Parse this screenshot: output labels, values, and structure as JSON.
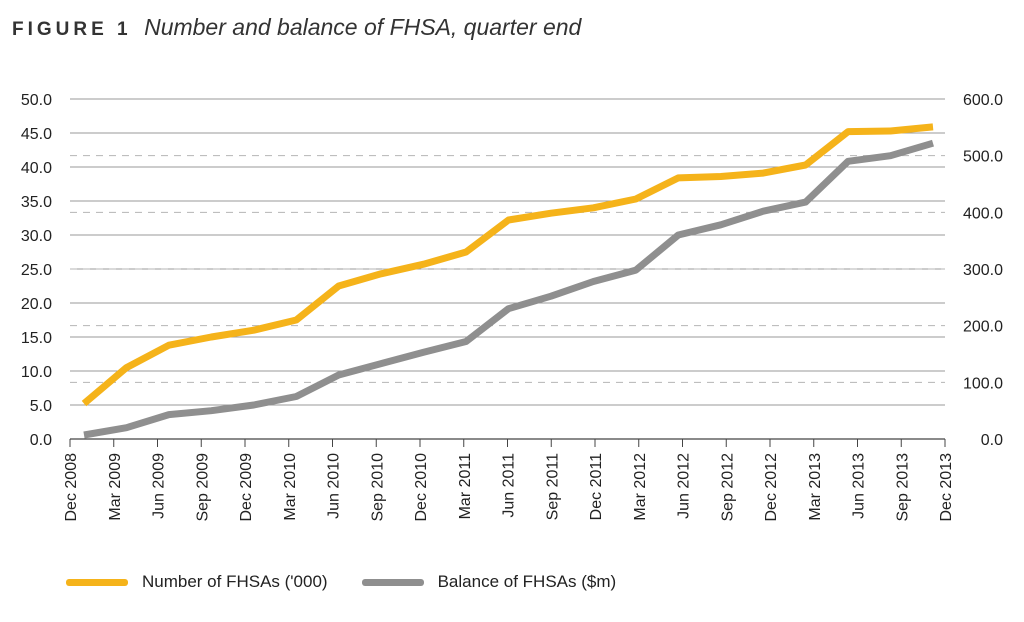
{
  "figure": {
    "label": "FIGURE 1",
    "title": "Number and balance of FHSA, quarter end"
  },
  "chart_data": {
    "type": "line",
    "x": [
      "Dec 2008",
      "Mar 2009",
      "Jun 2009",
      "Sep 2009",
      "Dec 2009",
      "Mar 2010",
      "Jun 2010",
      "Sep 2010",
      "Dec 2010",
      "Mar 2011",
      "Jun 2011",
      "Sep 2011",
      "Dec 2011",
      "Mar 2012",
      "Jun 2012",
      "Sep 2012",
      "Dec 2012",
      "Mar 2013",
      "Jun 2013",
      "Sep 2013",
      "Dec 2013"
    ],
    "series": [
      {
        "name": "Number of FHSAs ('000)",
        "axis": "left",
        "color": "#f5b31a",
        "values": [
          5.2,
          10.5,
          13.8,
          15.0,
          16.0,
          17.5,
          22.5,
          24.3,
          25.7,
          27.5,
          32.2,
          33.2,
          34.0,
          35.3,
          38.4,
          38.6,
          39.1,
          40.3,
          45.2,
          45.3,
          45.9
        ]
      },
      {
        "name": "Balance of FHSAs ($m)",
        "axis": "right",
        "color": "#8f8f8f",
        "values": [
          7,
          20,
          43,
          50,
          60,
          75,
          113,
          133,
          153,
          172,
          230,
          252,
          278,
          298,
          360,
          378,
          402,
          418,
          490,
          500,
          522
        ]
      }
    ],
    "y_left": {
      "range": [
        0,
        50
      ],
      "ticks": [
        "0.0",
        "5.0",
        "10.0",
        "15.0",
        "20.0",
        "25.0",
        "30.0",
        "35.0",
        "40.0",
        "45.0",
        "50.0"
      ]
    },
    "y_right": {
      "range": [
        0,
        600
      ],
      "ticks": [
        "0.0",
        "100.0",
        "200.0",
        "300.0",
        "400.0",
        "500.0",
        "600.0"
      ]
    },
    "grid": true,
    "legend_position": "bottom-left"
  },
  "legend": [
    {
      "label": "Number of FHSAs ('000)",
      "color": "#f5b31a"
    },
    {
      "label": "Balance of FHSAs ($m)",
      "color": "#8f8f8f"
    }
  ]
}
